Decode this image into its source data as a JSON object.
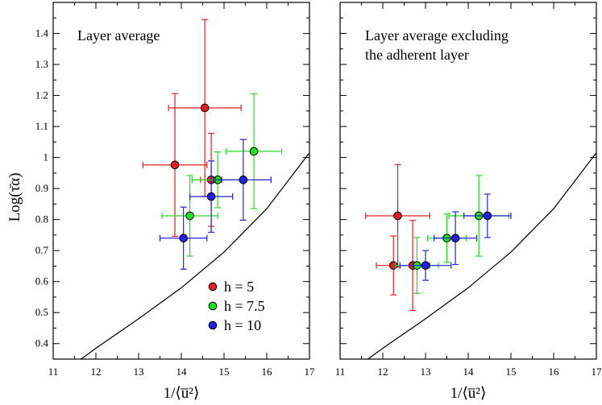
{
  "chart_data": {
    "type": "scatter",
    "ylabel": "Log(τ̄α)",
    "xlabel": "1/⟨u̅²⟩",
    "xlim": [
      11,
      17
    ],
    "ylim": [
      0.35,
      1.5
    ],
    "x_ticks": [
      "11",
      "12",
      "13",
      "14",
      "15",
      "16",
      "17"
    ],
    "y_ticks": [
      "0.4",
      "0.5",
      "0.6",
      "0.7",
      "0.8",
      "0.9",
      "1",
      "1.1",
      "1.2",
      "1.3",
      "1.4"
    ],
    "legend": {
      "placement": "lower-right of left panel",
      "entries": [
        {
          "label": "h = 5",
          "color": "#e02020"
        },
        {
          "label": "h = 7.5",
          "color": "#22e022"
        },
        {
          "label": "h = 10",
          "color": "#2222e0"
        }
      ]
    },
    "panels": [
      {
        "title_lines": [
          "Layer average"
        ],
        "reference_curve": [
          [
            11.5,
            0.335
          ],
          [
            12,
            0.385
          ],
          [
            13,
            0.48
          ],
          [
            14,
            0.58
          ],
          [
            15,
            0.695
          ],
          [
            16,
            0.835
          ],
          [
            17,
            1.015
          ]
        ],
        "series": [
          {
            "name": "h = 5",
            "color": "#e02020",
            "points": [
              {
                "x": 13.85,
                "y": 0.976,
                "xerr": 0.75,
                "yerr": 0.23
              },
              {
                "x": 14.55,
                "y": 1.16,
                "xerr": 0.85,
                "yerr": 0.285
              },
              {
                "x": 14.7,
                "y": 0.928,
                "xerr": 0.25,
                "yerr": 0.15
              }
            ]
          },
          {
            "name": "h = 7.5",
            "color": "#22e022",
            "points": [
              {
                "x": 15.7,
                "y": 1.02,
                "xerr": 0.65,
                "yerr": 0.185
              },
              {
                "x": 14.85,
                "y": 0.928,
                "xerr": 0.6,
                "yerr": 0.09
              },
              {
                "x": 14.2,
                "y": 0.812,
                "xerr": 0.65,
                "yerr": 0.13
              }
            ]
          },
          {
            "name": "h = 10",
            "color": "#2222e0",
            "points": [
              {
                "x": 15.45,
                "y": 0.928,
                "xerr": 0.65,
                "yerr": 0.13
              },
              {
                "x": 14.7,
                "y": 0.874,
                "xerr": 0.5,
                "yerr": 0.115
              },
              {
                "x": 14.05,
                "y": 0.74,
                "xerr": 0.55,
                "yerr": 0.1
              }
            ]
          }
        ]
      },
      {
        "title_lines": [
          "Layer average excluding",
          "the adherent layer"
        ],
        "reference_curve": [
          [
            11.5,
            0.335
          ],
          [
            12,
            0.385
          ],
          [
            13,
            0.48
          ],
          [
            14,
            0.58
          ],
          [
            15,
            0.695
          ],
          [
            16,
            0.835
          ],
          [
            17,
            1.015
          ]
        ],
        "series": [
          {
            "name": "h = 5",
            "color": "#e02020",
            "points": [
              {
                "x": 12.35,
                "y": 0.812,
                "xerr": 0.75,
                "yerr": 0.165
              },
              {
                "x": 12.25,
                "y": 0.652,
                "xerr": 0.4,
                "yerr": 0.095
              },
              {
                "x": 12.7,
                "y": 0.652,
                "xerr": 0.4,
                "yerr": 0.145
              }
            ]
          },
          {
            "name": "h = 7.5",
            "color": "#22e022",
            "points": [
              {
                "x": 14.25,
                "y": 0.812,
                "xerr": 0.7,
                "yerr": 0.13
              },
              {
                "x": 13.5,
                "y": 0.74,
                "xerr": 0.45,
                "yerr": 0.078
              },
              {
                "x": 12.8,
                "y": 0.652,
                "xerr": 0.5,
                "yerr": 0.09
              }
            ]
          },
          {
            "name": "h = 10",
            "color": "#2222e0",
            "points": [
              {
                "x": 14.45,
                "y": 0.812,
                "xerr": 0.55,
                "yerr": 0.07
              },
              {
                "x": 13.7,
                "y": 0.74,
                "xerr": 0.5,
                "yerr": 0.085
              },
              {
                "x": 13.0,
                "y": 0.652,
                "xerr": 0.6,
                "yerr": 0.048
              }
            ]
          }
        ]
      }
    ]
  }
}
